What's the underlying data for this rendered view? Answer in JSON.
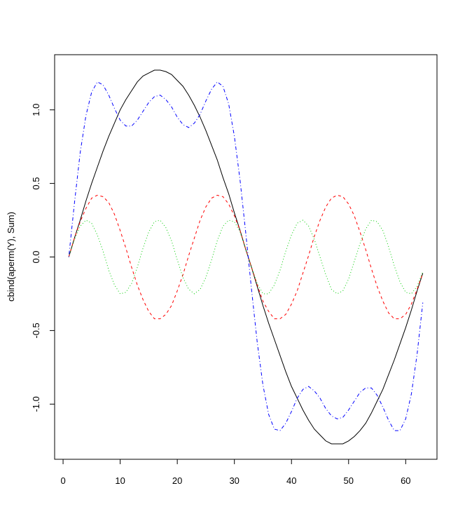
{
  "chart_data": {
    "type": "line",
    "ylabel": "cbind(aperm(Y), Sum)",
    "x": [
      1,
      2,
      3,
      4,
      5,
      6,
      7,
      8,
      9,
      10,
      11,
      12,
      13,
      14,
      15,
      16,
      17,
      18,
      19,
      20,
      21,
      22,
      23,
      24,
      25,
      26,
      27,
      28,
      29,
      30,
      31,
      32,
      33,
      34,
      35,
      36,
      37,
      38,
      39,
      40,
      41,
      42,
      43,
      44,
      45,
      46,
      47,
      48,
      49,
      50,
      51,
      52,
      53,
      54,
      55,
      56,
      57,
      58,
      59,
      60,
      61,
      62,
      63
    ],
    "series": [
      {
        "color": "#000000",
        "dash": "none",
        "values": [
          0,
          0.13,
          0.25,
          0.38,
          0.5,
          0.61,
          0.72,
          0.82,
          0.91,
          1.0,
          1.07,
          1.13,
          1.19,
          1.23,
          1.25,
          1.27,
          1.27,
          1.26,
          1.24,
          1.2,
          1.16,
          1.1,
          1.03,
          0.95,
          0.86,
          0.76,
          0.66,
          0.54,
          0.43,
          0.3,
          0.18,
          0.05,
          -0.07,
          -0.2,
          -0.33,
          -0.45,
          -0.56,
          -0.67,
          -0.78,
          -0.88,
          -0.96,
          -1.04,
          -1.11,
          -1.17,
          -1.21,
          -1.25,
          -1.27,
          -1.27,
          -1.27,
          -1.25,
          -1.22,
          -1.18,
          -1.13,
          -1.06,
          -0.98,
          -0.9,
          -0.8,
          -0.7,
          -0.59,
          -0.48,
          -0.36,
          -0.23,
          -0.11
        ]
      },
      {
        "color": "#ff0000",
        "dash": "4,4",
        "values": [
          0,
          0.13,
          0.24,
          0.33,
          0.4,
          0.42,
          0.41,
          0.37,
          0.29,
          0.18,
          0.06,
          -0.07,
          -0.19,
          -0.29,
          -0.37,
          -0.42,
          -0.42,
          -0.39,
          -0.33,
          -0.23,
          -0.12,
          0.01,
          0.13,
          0.25,
          0.34,
          0.4,
          0.42,
          0.41,
          0.36,
          0.28,
          0.18,
          0.05,
          -0.07,
          -0.19,
          -0.3,
          -0.37,
          -0.42,
          -0.42,
          -0.39,
          -0.32,
          -0.23,
          -0.11,
          0.01,
          0.14,
          0.25,
          0.34,
          0.4,
          0.42,
          0.41,
          0.36,
          0.28,
          0.17,
          0.05,
          -0.08,
          -0.2,
          -0.3,
          -0.38,
          -0.42,
          -0.42,
          -0.39,
          -0.32,
          -0.22,
          -0.11
        ]
      },
      {
        "color": "#00cd00",
        "dash": "1,3",
        "values": [
          0,
          0.12,
          0.21,
          0.25,
          0.23,
          0.15,
          0.04,
          -0.09,
          -0.19,
          -0.25,
          -0.24,
          -0.18,
          -0.07,
          0.06,
          0.17,
          0.24,
          0.25,
          0.2,
          0.11,
          -0.02,
          -0.14,
          -0.22,
          -0.25,
          -0.22,
          -0.14,
          -0.02,
          0.11,
          0.21,
          0.25,
          0.24,
          0.17,
          0.05,
          -0.07,
          -0.18,
          -0.25,
          -0.25,
          -0.19,
          -0.09,
          0.04,
          0.15,
          0.23,
          0.25,
          0.21,
          0.12,
          0,
          -0.12,
          -0.22,
          -0.25,
          -0.23,
          -0.15,
          -0.03,
          0.09,
          0.19,
          0.25,
          0.24,
          0.18,
          0.07,
          -0.06,
          -0.17,
          -0.24,
          -0.25,
          -0.2,
          -0.1
        ]
      },
      {
        "color": "#0000ff",
        "dash": "1,3,5,3",
        "values": [
          0,
          0.37,
          0.71,
          0.96,
          1.12,
          1.19,
          1.17,
          1.1,
          1.01,
          0.93,
          0.89,
          0.89,
          0.93,
          0.99,
          1.05,
          1.09,
          1.1,
          1.07,
          1.02,
          0.95,
          0.9,
          0.88,
          0.91,
          0.97,
          1.06,
          1.14,
          1.19,
          1.16,
          1.04,
          0.82,
          0.52,
          0.16,
          -0.22,
          -0.58,
          -0.87,
          -1.07,
          -1.17,
          -1.18,
          -1.13,
          -1.05,
          -0.96,
          -0.9,
          -0.88,
          -0.91,
          -0.96,
          -1.03,
          -1.08,
          -1.1,
          -1.09,
          -1.04,
          -0.98,
          -0.92,
          -0.89,
          -0.89,
          -0.94,
          -1.02,
          -1.11,
          -1.18,
          -1.18,
          -1.1,
          -0.93,
          -0.66,
          -0.31
        ]
      }
    ],
    "xlim": [
      -1.48,
      65.48
    ],
    "xticks": [
      0,
      10,
      20,
      30,
      40,
      50,
      60
    ],
    "ylim": [
      -1.375,
      1.375
    ],
    "yticks": [
      {
        "value": -1,
        "label": "-1.0"
      },
      {
        "value": -0.5,
        "label": "-0.5"
      },
      {
        "value": 0,
        "label": "0.0"
      },
      {
        "value": 0.5,
        "label": "0.5"
      },
      {
        "value": 1,
        "label": "1.0"
      }
    ]
  }
}
